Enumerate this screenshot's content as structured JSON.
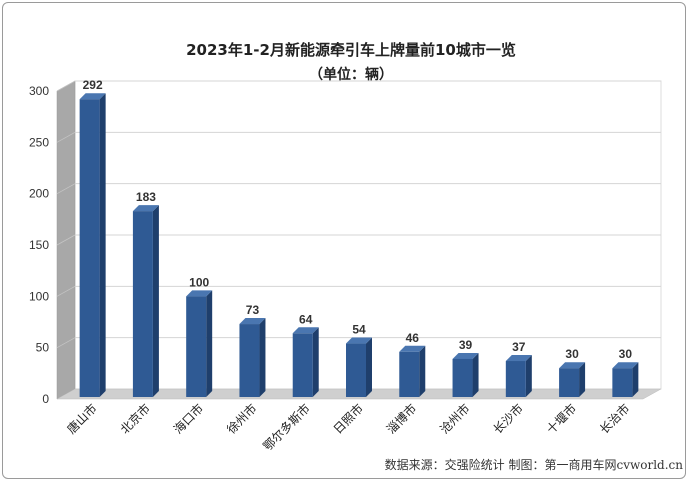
{
  "chart_data": {
    "type": "bar",
    "title": "2023年1-2月新能源牵引车上牌量前10城市一览",
    "subtitle": "（单位：辆）",
    "categories": [
      "唐山市",
      "北京市",
      "海口市",
      "徐州市",
      "鄂尔多斯市",
      "日照市",
      "淄博市",
      "沧州市",
      "长沙市",
      "十堰市",
      "长治市"
    ],
    "values": [
      292,
      183,
      100,
      73,
      64,
      54,
      46,
      39,
      37,
      30,
      30
    ],
    "xlabel": "",
    "ylabel": "",
    "ylim": [
      0,
      300
    ],
    "yticks": [
      0,
      50,
      100,
      150,
      200,
      250,
      300
    ],
    "grid": true,
    "legend": "none",
    "style": "3d-column",
    "source": "数据来源：交强险统计  制图：第一商用车网cvworld.cn"
  },
  "colors": {
    "bar_front": "#2f5a94",
    "bar_side": "#1f3f6c",
    "bar_top": "#4a76b0",
    "gridline": "#d4d4d4",
    "back_wall": "#ffffff",
    "side_wall": "#a8a8a8",
    "floor": "#cfcfcf"
  }
}
